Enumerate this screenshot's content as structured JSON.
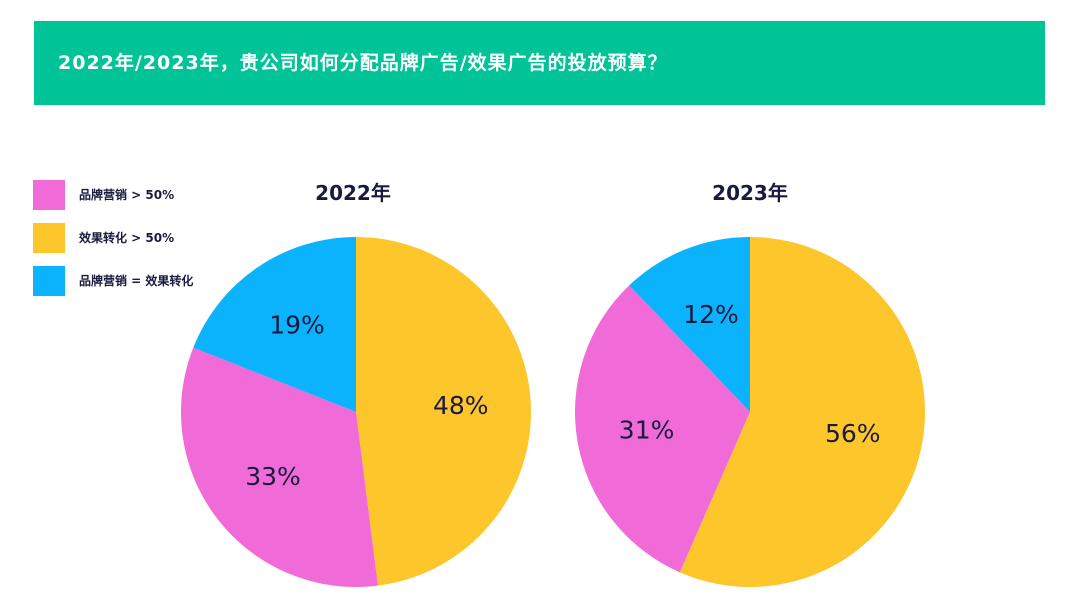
{
  "header": {
    "title": "2022年/2023年，贵公司如何分配品牌广告/效果广告的投放预算？",
    "background": "#00c398"
  },
  "legend": [
    {
      "label": "品牌营销 > 50%",
      "color": "#f06bd8"
    },
    {
      "label": "效果转化 > 50%",
      "color": "#fdc72c"
    },
    {
      "label": "品牌营销 = 效果转化",
      "color": "#0ab3fb"
    }
  ],
  "chart_data": [
    {
      "type": "pie",
      "title": "2022年",
      "categories": [
        "效果转化 > 50%",
        "品牌营销 > 50%",
        "品牌营销 = 效果转化"
      ],
      "values": [
        48,
        33,
        19
      ],
      "labels": [
        "48%",
        "33%",
        "19%"
      ],
      "colors": [
        "#fdc72c",
        "#f06bd8",
        "#0ab3fb"
      ],
      "start": "top, clockwise"
    },
    {
      "type": "pie",
      "title": "2023年",
      "categories": [
        "效果转化 > 50%",
        "品牌营销 > 50%",
        "品牌营销 = 效果转化"
      ],
      "values": [
        56,
        31,
        12
      ],
      "labels": [
        "56%",
        "31%",
        "12%"
      ],
      "colors": [
        "#fdc72c",
        "#f06bd8",
        "#0ab3fb"
      ],
      "start": "top, clockwise"
    }
  ]
}
